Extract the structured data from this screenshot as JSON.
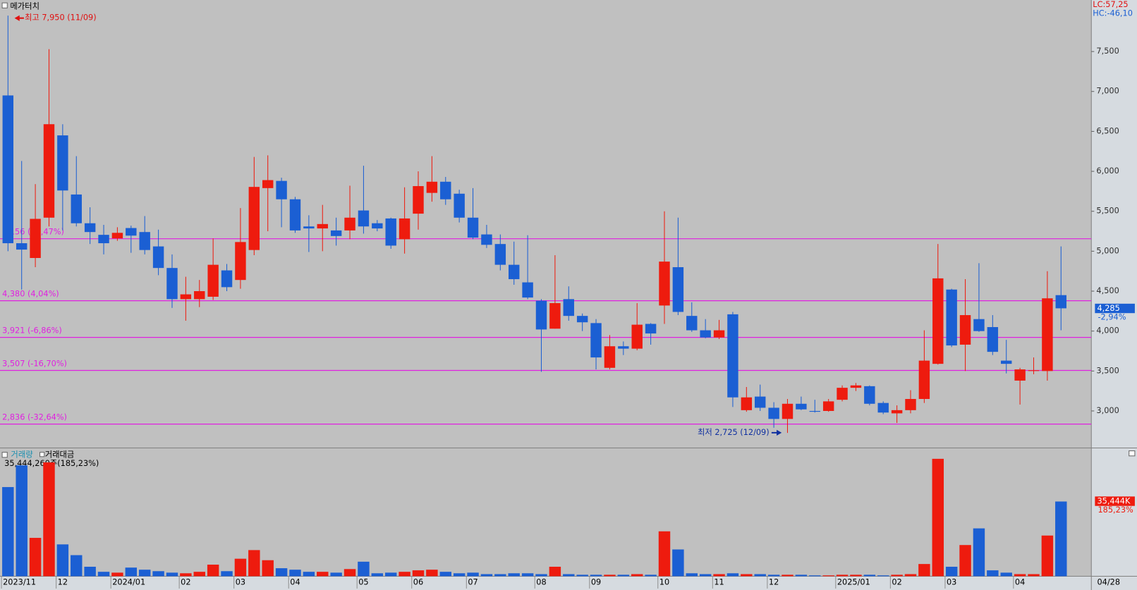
{
  "chart_data": {
    "type": "candlestick",
    "title": "메가터치",
    "indicators": [
      "LC:57,25",
      "HC:-46,10"
    ],
    "categories": [
      "2023/11",
      null,
      null,
      null,
      "12",
      null,
      null,
      null,
      "2024/01",
      null,
      null,
      null,
      null,
      "02",
      null,
      null,
      null,
      "03",
      null,
      null,
      null,
      "04",
      null,
      null,
      null,
      null,
      "05",
      null,
      null,
      null,
      "06",
      null,
      null,
      null,
      "07",
      null,
      null,
      null,
      null,
      "08",
      null,
      null,
      null,
      "09",
      null,
      null,
      null,
      null,
      "10",
      null,
      null,
      null,
      "11",
      null,
      null,
      null,
      "12",
      null,
      null,
      null,
      null,
      "2025/01",
      null,
      null,
      null,
      "02",
      null,
      null,
      null,
      "03",
      null,
      null,
      null,
      null,
      "04",
      null,
      null,
      null
    ],
    "last_date": "04/28",
    "open": [
      6950,
      5100,
      4915,
      5420,
      6450,
      5710,
      5350,
      5205,
      5160,
      5290,
      5240,
      5060,
      4790,
      4400,
      4400,
      4430,
      4760,
      4640,
      5015,
      5790,
      5880,
      5650,
      5310,
      5285,
      5260,
      5260,
      5510,
      5350,
      5410,
      5150,
      5470,
      5730,
      5870,
      5720,
      5420,
      5210,
      5090,
      4830,
      4610,
      4380,
      4030,
      4400,
      4190,
      4100,
      3540,
      3810,
      3780,
      4090,
      4320,
      4800,
      4190,
      4010,
      3920,
      4210,
      3010,
      3180,
      3040,
      2900,
      3090,
      3000,
      3000,
      3140,
      3290,
      3310,
      3100,
      2970,
      3010,
      3150,
      3590,
      4520,
      3830,
      4150,
      4050,
      3630,
      3380,
      3500,
      3500,
      4450
    ],
    "high": [
      7950,
      6130,
      5840,
      7530,
      6590,
      6190,
      5550,
      5330,
      5300,
      5320,
      5440,
      5270,
      4960,
      4680,
      4640,
      5160,
      4840,
      5540,
      6180,
      6200,
      5920,
      5680,
      5450,
      5580,
      5420,
      5820,
      6070,
      5390,
      5420,
      5800,
      6000,
      6190,
      5930,
      5770,
      5790,
      5330,
      5210,
      5120,
      5200,
      4400,
      4950,
      4560,
      4220,
      4150,
      3950,
      3870,
      4350,
      4100,
      5500,
      5420,
      4360,
      4150,
      4140,
      4240,
      3300,
      3330,
      3110,
      3150,
      3180,
      3140,
      3150,
      3320,
      3350,
      3320,
      3120,
      3070,
      3260,
      4010,
      5090,
      4530,
      4650,
      4850,
      4200,
      3890,
      3540,
      3670,
      4750,
      5060
    ],
    "low": [
      5000,
      4520,
      4800,
      5310,
      5260,
      5310,
      5090,
      4960,
      5130,
      4980,
      4960,
      4700,
      4290,
      4130,
      4300,
      4390,
      4500,
      4530,
      4950,
      5250,
      5300,
      5230,
      4990,
      5000,
      5070,
      5150,
      5220,
      5250,
      5030,
      4970,
      5270,
      5620,
      5580,
      5360,
      5150,
      5040,
      4760,
      4580,
      4400,
      3490,
      4030,
      4130,
      4000,
      3520,
      3520,
      3700,
      3760,
      3830,
      4090,
      4200,
      3990,
      3910,
      3900,
      3050,
      2990,
      3000,
      2790,
      2725,
      3010,
      2980,
      2990,
      3120,
      3250,
      3070,
      2960,
      2850,
      2970,
      3100,
      3580,
      3800,
      3500,
      3990,
      3700,
      3470,
      3080,
      3460,
      3380,
      4010
    ],
    "close": [
      5100,
      5020,
      5405,
      6590,
      5760,
      5350,
      5240,
      5100,
      5230,
      5195,
      5015,
      4790,
      4400,
      4460,
      4500,
      4830,
      4550,
      5115,
      5805,
      5890,
      5650,
      5260,
      5285,
      5340,
      5190,
      5420,
      5310,
      5285,
      5070,
      5410,
      5815,
      5870,
      5650,
      5420,
      5170,
      5080,
      4830,
      4650,
      4420,
      4020,
      4350,
      4190,
      4110,
      3670,
      3810,
      3780,
      4080,
      3970,
      4870,
      4240,
      4010,
      3920,
      4010,
      3170,
      3170,
      3040,
      2900,
      3090,
      3020,
      2990,
      3120,
      3290,
      3320,
      3090,
      2980,
      3010,
      3150,
      3630,
      4660,
      3820,
      4200,
      4000,
      3740,
      3590,
      3520,
      3510,
      4410,
      4285
    ],
    "up_color": "#ee1b0e",
    "down_color": "#1b5fd3",
    "ylim": [
      2537,
      8145
    ],
    "yticks": [
      {
        "value": 3000,
        "label": "3,000"
      },
      {
        "value": 3500,
        "label": "3,500"
      },
      {
        "value": 4000,
        "label": "4,000"
      },
      {
        "value": 4500,
        "label": "4,500"
      },
      {
        "value": 5000,
        "label": "5,000"
      },
      {
        "value": 5500,
        "label": "5,500"
      },
      {
        "value": 6000,
        "label": "6,000"
      },
      {
        "value": 6500,
        "label": "6,500"
      },
      {
        "value": 7000,
        "label": "7,000"
      },
      {
        "value": 7500,
        "label": "7,500"
      }
    ],
    "levels": [
      {
        "value": 5156,
        "label": "5,156 (22,47%)"
      },
      {
        "value": 4380,
        "label": "4,380 (4,04%)"
      },
      {
        "value": 3921,
        "label": "3,921 (-6,86%)"
      },
      {
        "value": 3507,
        "label": "3,507 (-16,70%)"
      },
      {
        "value": 2836,
        "label": "2,836 (-32,64%)"
      }
    ],
    "level_color": "#e020e0",
    "high_note": "최고 7,950 (11/09)",
    "low_note": "최저 2,725 (12/09)",
    "price_label": {
      "value": 4285,
      "label": "4,285"
    },
    "change": "-2,94%",
    "volume": {
      "label": "거래량",
      "label2": "거래대금",
      "summary": "35,444,260주(185,23%)",
      "last_label": "35,444K",
      "last_change": "185,23%",
      "values": [
        42300,
        52600,
        18200,
        54000,
        15100,
        10000,
        4500,
        2100,
        1700,
        4100,
        3100,
        2400,
        1700,
        1400,
        2100,
        5500,
        2400,
        8300,
        12400,
        7600,
        3800,
        3100,
        2100,
        2100,
        1700,
        3400,
        6900,
        1400,
        1700,
        2100,
        2800,
        3100,
        2100,
        1400,
        1700,
        1000,
        1000,
        1400,
        1400,
        1000,
        4500,
        1000,
        700,
        700,
        700,
        700,
        1000,
        700,
        21300,
        12700,
        1400,
        1000,
        1000,
        1400,
        1000,
        1000,
        700,
        700,
        700,
        400,
        400,
        700,
        700,
        700,
        400,
        700,
        1000,
        5800,
        55700,
        4500,
        14800,
        22700,
        2800,
        1700,
        1000,
        1000,
        19300,
        35444.26
      ]
    }
  }
}
